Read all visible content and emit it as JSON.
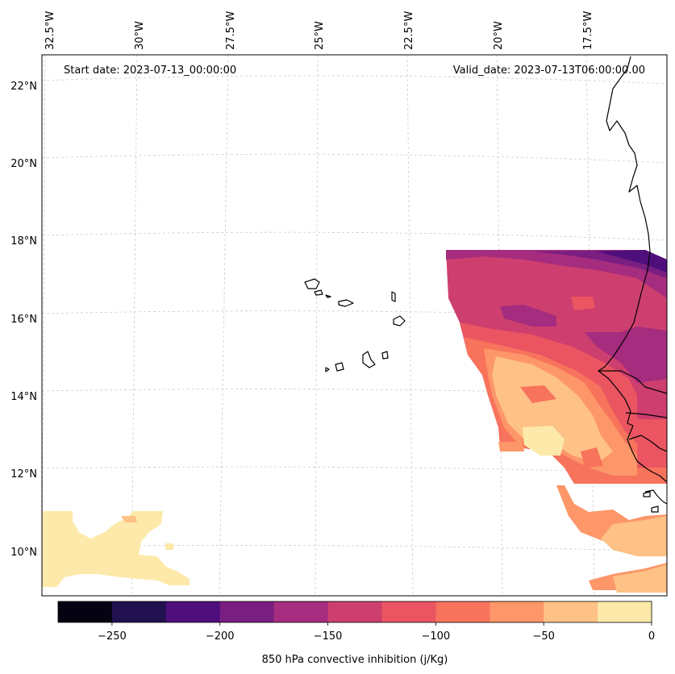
{
  "header": {
    "start_label": "Start date: 2023-07-13_00:00:00",
    "valid_label": "Valid_date: 2023-07-13T06:00:00.00"
  },
  "map": {
    "lon_labels": [
      "32.5°W",
      "30°W",
      "27.5°W",
      "25°W",
      "22.5°W",
      "20°W",
      "17.5°W"
    ],
    "lat_labels": [
      "22°N",
      "20°N",
      "18°N",
      "16°N",
      "14°N",
      "12°N",
      "10°N"
    ],
    "gridline_color": "#cccccc",
    "coastline_color": "#000000"
  },
  "colorbar": {
    "title": "850 hPa convective inhibition (j/Kg)",
    "tick_labels": [
      "−250",
      "−200",
      "−150",
      "−100",
      "−50",
      "0"
    ],
    "levels": [
      -275,
      -250,
      -225,
      -200,
      -175,
      -150,
      -125,
      -100,
      -75,
      -50,
      -25,
      0
    ],
    "colors": [
      "#050312",
      "#221150",
      "#4e0f7c",
      "#7a1e81",
      "#a52c7e",
      "#cd3f6f",
      "#ea5561",
      "#f7735c",
      "#fd9668",
      "#fec186",
      "#fde9a9"
    ]
  },
  "chart_data": {
    "type": "heatmap",
    "title": "850 hPa convective inhibition (j/Kg)",
    "field": "850 hPa convective inhibition",
    "units": "j/Kg",
    "start_date": "2023-07-13_00:00:00",
    "valid_date": "2023-07-13T06:00:00.00",
    "lon_range": [
      -33.5,
      -15.2
    ],
    "lat_range": [
      8.9,
      22.8
    ],
    "lon_ticks": [
      -32.5,
      -30,
      -27.5,
      -25,
      -22.5,
      -20,
      -17.5
    ],
    "lat_ticks": [
      22,
      20,
      18,
      16,
      14,
      12,
      10
    ],
    "colorbar_range": [
      -275,
      0
    ],
    "colorbar_ticks": [
      -250,
      -200,
      -150,
      -100,
      -50,
      0
    ],
    "colorbar_label": "850 hPa convective inhibition (j/Kg)"
  }
}
